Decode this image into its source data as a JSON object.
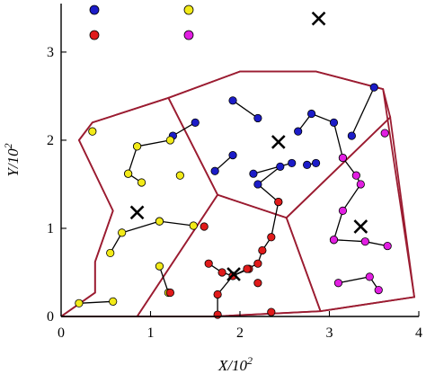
{
  "chart_data": {
    "type": "scatter",
    "xlabel": "X/10",
    "xlabel_sup": "2",
    "ylabel": "Y/10",
    "ylabel_sup": "2",
    "xlim": [
      0,
      4
    ],
    "ylim": [
      0,
      3.55
    ],
    "xticks": [
      {
        "value": 0,
        "label": "0"
      },
      {
        "value": 1,
        "label": "1"
      },
      {
        "value": 2,
        "label": "2"
      },
      {
        "value": 3,
        "label": "3"
      },
      {
        "value": 4,
        "label": "4"
      }
    ],
    "yticks": [
      {
        "value": 0,
        "label": "0"
      },
      {
        "value": 1,
        "label": "1"
      },
      {
        "value": 2,
        "label": "2"
      },
      {
        "value": 3,
        "label": "3"
      }
    ],
    "grid": false,
    "legend_position": "top-left",
    "legend_colors": [
      "#1c1cc8",
      "#f2ea18",
      "#e01b1b",
      "#e21ee2"
    ],
    "colors": {
      "blue": "#1c1cc8",
      "yellow": "#f2ea18",
      "red": "#e01b1b",
      "magenta": "#e21ee2",
      "boundary": "#9b1c31"
    },
    "regions": [
      {
        "name": "outer",
        "points": [
          [
            0,
            0
          ],
          [
            0.38,
            0.27
          ],
          [
            0.38,
            0.62
          ],
          [
            0.58,
            1.2
          ],
          [
            0.2,
            2.0
          ],
          [
            0.35,
            2.2
          ],
          [
            1.2,
            2.48
          ],
          [
            2.0,
            2.78
          ],
          [
            2.85,
            2.78
          ],
          [
            3.6,
            2.58
          ],
          [
            3.95,
            0.22
          ],
          [
            2.9,
            0.06
          ],
          [
            1.7,
            0
          ],
          [
            0,
            0
          ]
        ]
      },
      {
        "name": "blue",
        "points": [
          [
            1.2,
            2.48
          ],
          [
            1.75,
            1.38
          ],
          [
            2.52,
            1.12
          ],
          [
            3.68,
            2.26
          ],
          [
            3.6,
            2.58
          ],
          [
            2.85,
            2.78
          ],
          [
            2.0,
            2.78
          ],
          [
            1.2,
            2.48
          ]
        ]
      },
      {
        "name": "yellow",
        "points": [
          [
            0,
            0
          ],
          [
            0.38,
            0.27
          ],
          [
            0.38,
            0.62
          ],
          [
            0.58,
            1.2
          ],
          [
            0.2,
            2.0
          ],
          [
            0.35,
            2.2
          ],
          [
            1.2,
            2.48
          ],
          [
            1.75,
            1.38
          ],
          [
            0.85,
            0
          ],
          [
            0,
            0
          ]
        ]
      },
      {
        "name": "red",
        "points": [
          [
            0.85,
            0
          ],
          [
            1.75,
            1.38
          ],
          [
            2.52,
            1.12
          ],
          [
            2.9,
            0.06
          ],
          [
            1.7,
            0
          ],
          [
            0.85,
            0
          ]
        ]
      },
      {
        "name": "magenta",
        "points": [
          [
            2.52,
            1.12
          ],
          [
            3.68,
            2.26
          ],
          [
            3.95,
            0.22
          ],
          [
            2.9,
            0.06
          ],
          [
            2.52,
            1.12
          ]
        ]
      }
    ],
    "centers": [
      {
        "x": 2.88,
        "y": 3.38
      },
      {
        "x": 2.43,
        "y": 1.98
      },
      {
        "x": 0.85,
        "y": 1.18
      },
      {
        "x": 3.35,
        "y": 1.02
      },
      {
        "x": 1.93,
        "y": 0.48
      }
    ],
    "series": [
      {
        "color": "blue",
        "paths": [
          [
            [
              1.92,
              2.45
            ],
            [
              2.2,
              2.25
            ]
          ],
          [
            [
              1.5,
              2.2
            ],
            [
              1.25,
              2.05
            ]
          ],
          [
            [
              1.92,
              1.83
            ],
            [
              1.72,
              1.65
            ]
          ],
          [
            [
              2.58,
              1.74
            ],
            [
              2.15,
              1.62
            ]
          ],
          [
            [
              2.45,
              1.7
            ],
            [
              2.2,
              1.5
            ],
            [
              2.43,
              1.3
            ]
          ],
          [
            [
              2.65,
              2.1
            ],
            [
              2.8,
              2.3
            ],
            [
              3.05,
              2.2
            ],
            [
              3.15,
              1.8
            ]
          ],
          [
            [
              3.25,
              2.05
            ],
            [
              3.5,
              2.6
            ]
          ],
          [
            [
              2.75,
              1.72
            ],
            [
              2.85,
              1.74
            ]
          ]
        ]
      },
      {
        "color": "yellow",
        "paths": [
          [
            [
              0.35,
              2.1
            ]
          ],
          [
            [
              0.85,
              1.93
            ],
            [
              1.22,
              2.0
            ]
          ],
          [
            [
              0.75,
              1.62
            ],
            [
              0.85,
              1.93
            ]
          ],
          [
            [
              0.75,
              1.62
            ],
            [
              0.9,
              1.52
            ]
          ],
          [
            [
              1.33,
              1.6
            ]
          ],
          [
            [
              1.1,
              1.08
            ],
            [
              1.48,
              1.03
            ]
          ],
          [
            [
              0.55,
              0.72
            ],
            [
              0.68,
              0.95
            ],
            [
              1.1,
              1.08
            ]
          ],
          [
            [
              1.1,
              0.57
            ],
            [
              1.2,
              0.27
            ]
          ],
          [
            [
              0.2,
              0.15
            ],
            [
              0.58,
              0.17
            ]
          ]
        ]
      },
      {
        "color": "red",
        "paths": [
          [
            [
              1.6,
              1.02
            ]
          ],
          [
            [
              1.65,
              0.6
            ],
            [
              1.8,
              0.5
            ],
            [
              1.92,
              0.46
            ],
            [
              2.1,
              0.54
            ]
          ],
          [
            [
              2.43,
              1.3
            ],
            [
              2.35,
              0.9
            ],
            [
              2.25,
              0.75
            ],
            [
              2.2,
              0.6
            ],
            [
              2.08,
              0.54
            ],
            [
              1.92,
              0.46
            ],
            [
              1.75,
              0.25
            ],
            [
              1.75,
              0.02
            ]
          ],
          [
            [
              2.2,
              0.38
            ]
          ],
          [
            [
              1.22,
              0.27
            ]
          ],
          [
            [
              2.35,
              0.05
            ]
          ]
        ]
      },
      {
        "color": "magenta",
        "paths": [
          [
            [
              3.15,
              1.8
            ],
            [
              3.3,
              1.6
            ],
            [
              3.35,
              1.5
            ],
            [
              3.15,
              1.2
            ],
            [
              3.05,
              0.87
            ]
          ],
          [
            [
              3.05,
              0.87
            ],
            [
              3.4,
              0.85
            ],
            [
              3.65,
              0.8
            ]
          ],
          [
            [
              3.62,
              2.08
            ]
          ],
          [
            [
              3.1,
              0.38
            ],
            [
              3.45,
              0.45
            ],
            [
              3.55,
              0.3
            ]
          ]
        ]
      }
    ]
  }
}
